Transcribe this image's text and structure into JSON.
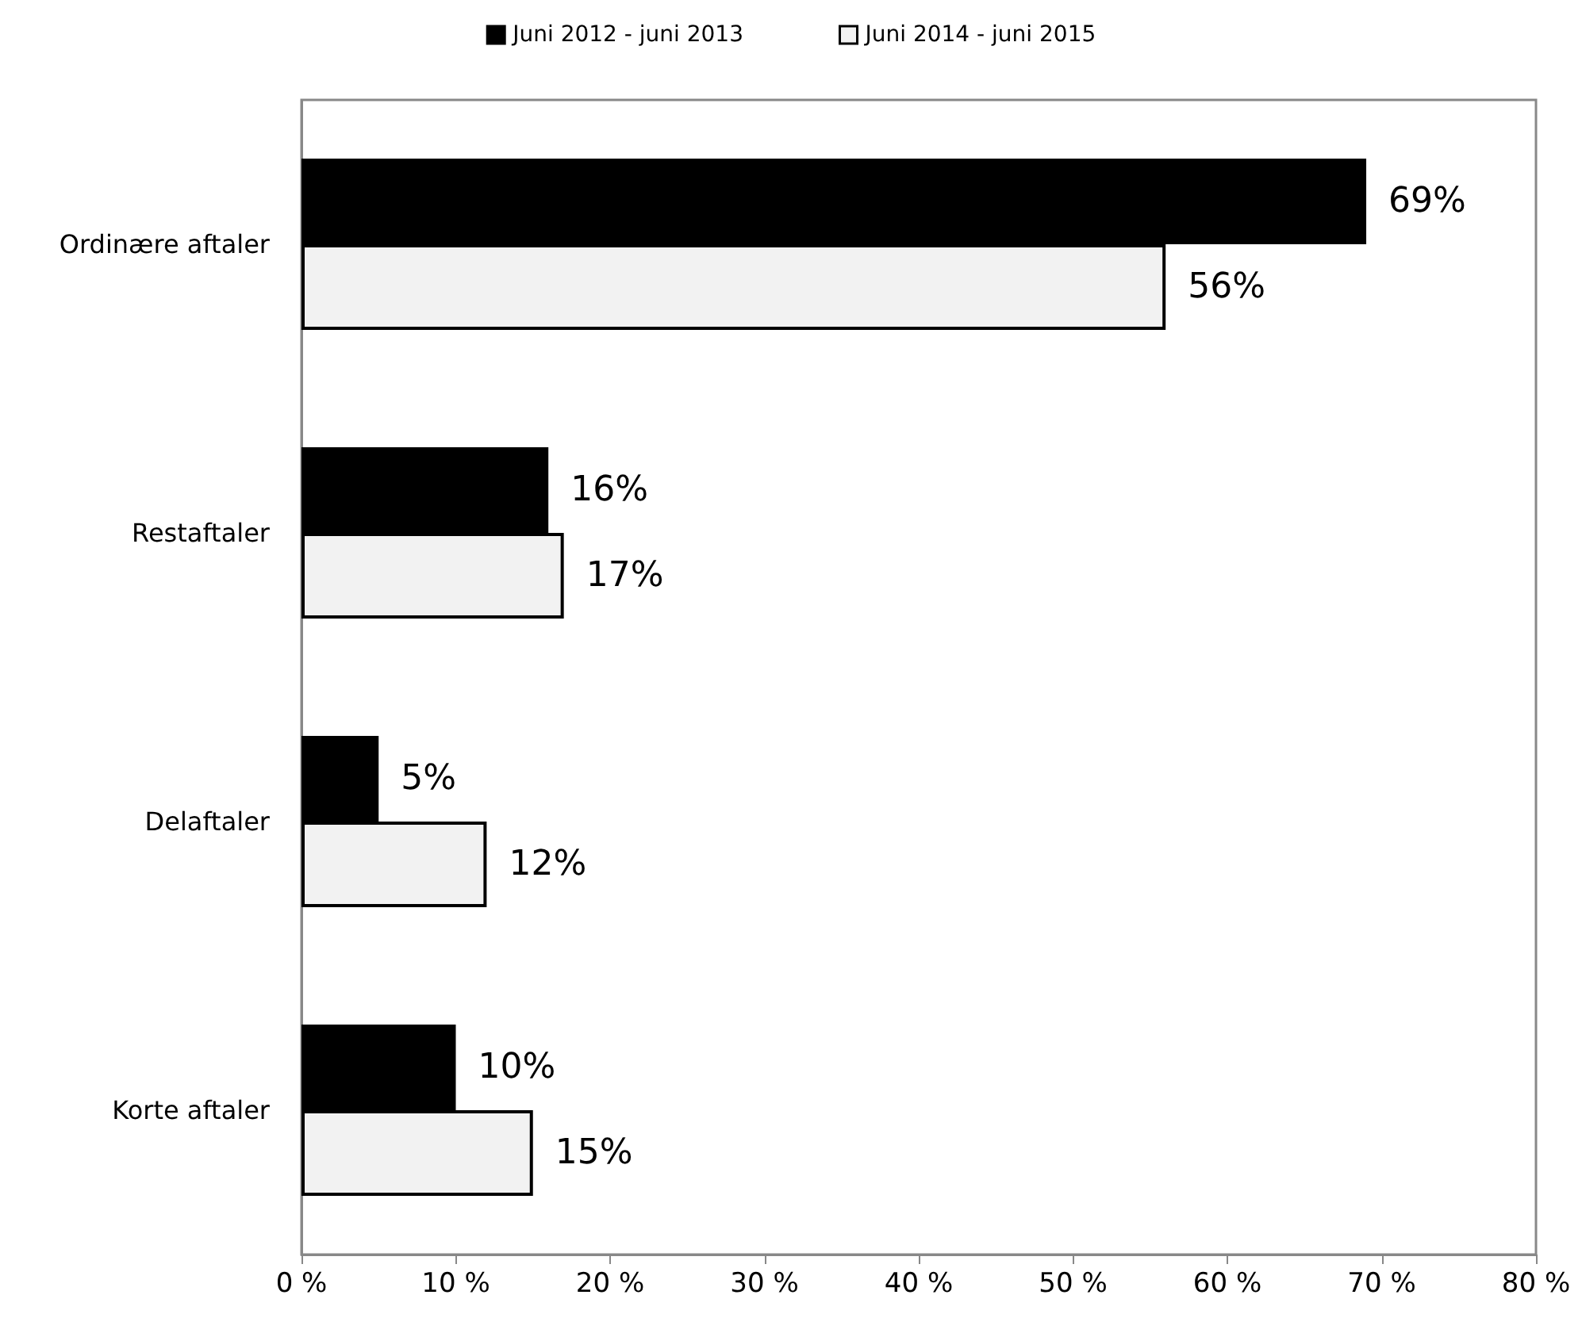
{
  "chart_data": {
    "type": "bar",
    "orientation": "horizontal",
    "categories": [
      "Ordinære aftaler",
      "Restaftaler",
      "Delaftaler",
      "Korte aftaler"
    ],
    "series": [
      {
        "name": "Juni 2012 - juni 2013",
        "color": "#000000",
        "values": [
          69,
          16,
          5,
          10
        ],
        "value_labels": [
          "69%",
          "16%",
          "5%",
          "10%"
        ]
      },
      {
        "name": "Juni 2014 - juni 2015",
        "color": "#f2f2f2",
        "values": [
          56,
          17,
          12,
          15
        ],
        "value_labels": [
          "56%",
          "17%",
          "12%",
          "15%"
        ]
      }
    ],
    "xlim": [
      0,
      80
    ],
    "xticks": [
      {
        "value": 0,
        "label": "0 %"
      },
      {
        "value": 10,
        "label": "10 %"
      },
      {
        "value": 20,
        "label": "20 %"
      },
      {
        "value": 30,
        "label": "30 %"
      },
      {
        "value": 40,
        "label": "40 %"
      },
      {
        "value": 50,
        "label": "50 %"
      },
      {
        "value": 60,
        "label": "60 %"
      },
      {
        "value": 70,
        "label": "70 %"
      },
      {
        "value": 80,
        "label": "80 %"
      }
    ],
    "legend": "top",
    "grid": false
  }
}
